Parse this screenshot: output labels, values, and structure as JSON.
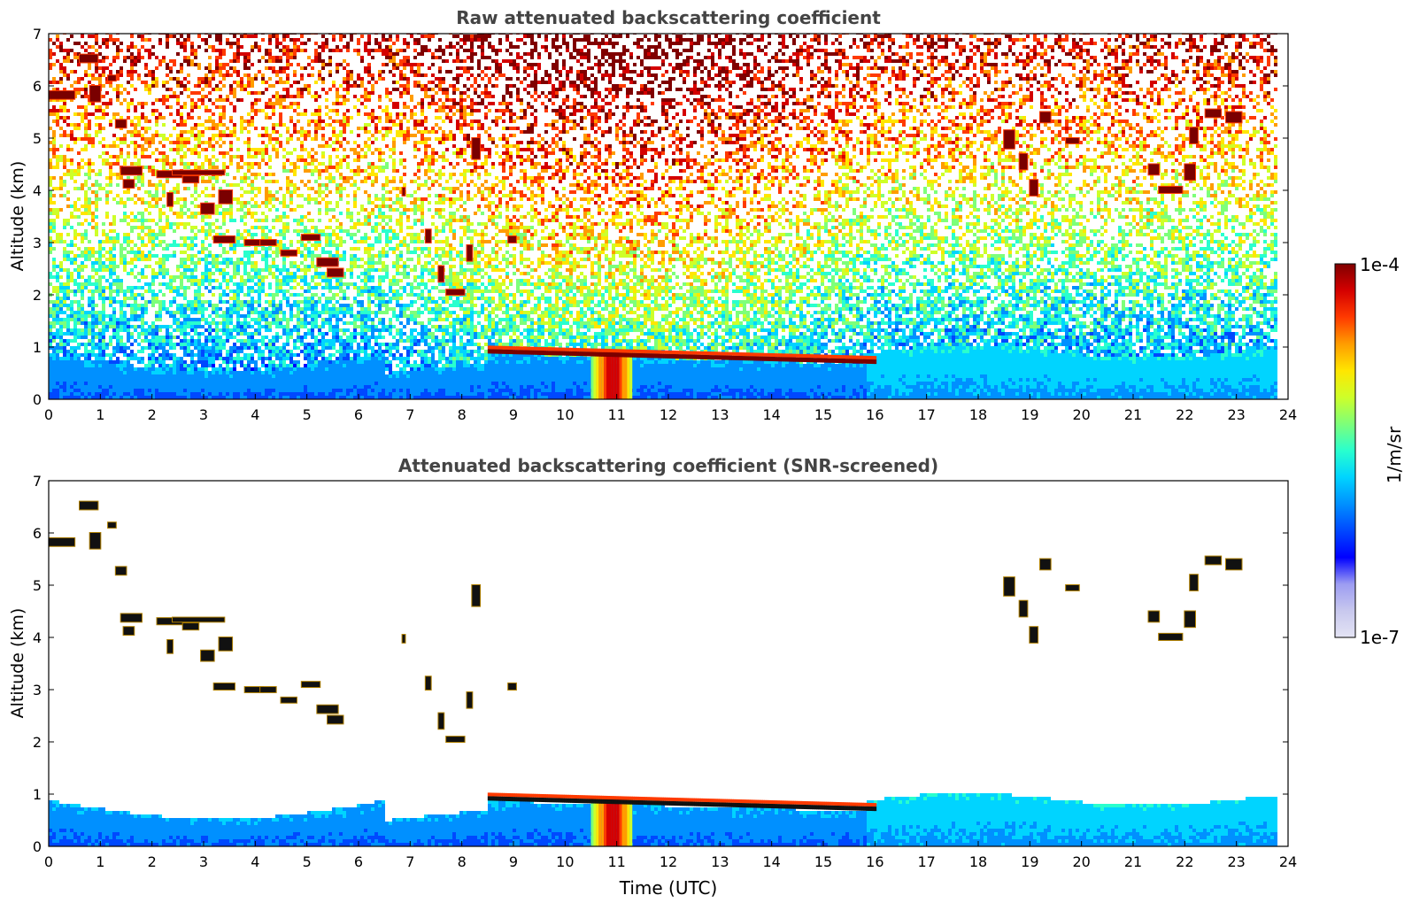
{
  "colors": {
    "title": "#444444",
    "axis": "#000000",
    "background": "#ffffff",
    "cloud_dark": "#7a0000",
    "colormap": [
      "#e4e4f4",
      "#c8c8ee",
      "#9c9cf2",
      "#0000ff",
      "#0048ff",
      "#0090ff",
      "#00d4ff",
      "#29ffce",
      "#7dff7a",
      "#ceff29",
      "#ffe600",
      "#ff9c00",
      "#ff3a00",
      "#d40000",
      "#800000"
    ]
  },
  "chart_data": [
    {
      "type": "heatmap",
      "title": "Raw attenuated backscattering coefficient",
      "xlabel": "",
      "ylabel": "Altitude (km)",
      "xlim": [
        0,
        24
      ],
      "ylim": [
        0,
        7
      ],
      "x_ticks": [
        0,
        1,
        2,
        3,
        4,
        5,
        6,
        7,
        8,
        9,
        10,
        11,
        12,
        13,
        14,
        15,
        16,
        17,
        18,
        19,
        20,
        21,
        22,
        23,
        24
      ],
      "x_tick_labels": [
        "0",
        "1",
        "2",
        "3",
        "4",
        "5",
        "6",
        "7",
        "8",
        "9",
        "10",
        "11",
        "12",
        "13",
        "14",
        "15",
        "16",
        "17",
        "18",
        "19",
        "20",
        "21",
        "22",
        "23",
        "24"
      ],
      "y_ticks": [
        0,
        1,
        2,
        3,
        4,
        5,
        6,
        7
      ],
      "y_tick_labels": [
        "0",
        "1",
        "2",
        "3",
        "4",
        "5",
        "6",
        "7"
      ],
      "data_extent_x": [
        0,
        23.8
      ],
      "features": {
        "boundary_layer_top_km": 0.6,
        "cloud_layer": {
          "start_utc": 8.5,
          "end_utc": 16.0,
          "altitude_km": [
            0.92,
            0.72
          ]
        },
        "precip_shaft": {
          "start_utc": 10.5,
          "end_utc": 11.3
        }
      }
    },
    {
      "type": "heatmap",
      "title": "Attenuated backscattering coefficient (SNR-screened)",
      "xlabel": "Time (UTC)",
      "ylabel": "Altitude (km)",
      "xlim": [
        0,
        24
      ],
      "ylim": [
        0,
        7
      ],
      "x_ticks": [
        0,
        1,
        2,
        3,
        4,
        5,
        6,
        7,
        8,
        9,
        10,
        11,
        12,
        13,
        14,
        15,
        16,
        17,
        18,
        19,
        20,
        21,
        22,
        23,
        24
      ],
      "x_tick_labels": [
        "0",
        "1",
        "2",
        "3",
        "4",
        "5",
        "6",
        "7",
        "8",
        "9",
        "10",
        "11",
        "12",
        "13",
        "14",
        "15",
        "16",
        "17",
        "18",
        "19",
        "20",
        "21",
        "22",
        "23",
        "24"
      ],
      "y_ticks": [
        0,
        1,
        2,
        3,
        4,
        5,
        6,
        7
      ],
      "y_tick_labels": [
        "0",
        "1",
        "2",
        "3",
        "4",
        "5",
        "6",
        "7"
      ],
      "data_extent_x": [
        0,
        23.8
      ]
    }
  ],
  "colorbar": {
    "label": "1/m/sr",
    "max_label": "1e-4",
    "min_label": "1e-7"
  },
  "cloud_segments": [
    {
      "t": 0.0,
      "a": 5.75,
      "w": 0.5,
      "h": 0.15
    },
    {
      "t": 0.6,
      "a": 6.45,
      "w": 0.35,
      "h": 0.15
    },
    {
      "t": 0.8,
      "a": 5.7,
      "w": 0.2,
      "h": 0.3
    },
    {
      "t": 1.15,
      "a": 6.1,
      "w": 0.15,
      "h": 0.1
    },
    {
      "t": 1.3,
      "a": 5.2,
      "w": 0.2,
      "h": 0.15
    },
    {
      "t": 1.4,
      "a": 4.3,
      "w": 0.4,
      "h": 0.15
    },
    {
      "t": 1.45,
      "a": 4.05,
      "w": 0.2,
      "h": 0.15
    },
    {
      "t": 2.1,
      "a": 4.25,
      "w": 0.8,
      "h": 0.12
    },
    {
      "t": 2.6,
      "a": 4.15,
      "w": 0.3,
      "h": 0.12
    },
    {
      "t": 2.4,
      "a": 4.3,
      "w": 1.0,
      "h": 0.08
    },
    {
      "t": 2.3,
      "a": 3.7,
      "w": 0.1,
      "h": 0.25
    },
    {
      "t": 2.95,
      "a": 3.55,
      "w": 0.25,
      "h": 0.2
    },
    {
      "t": 3.3,
      "a": 3.75,
      "w": 0.25,
      "h": 0.25
    },
    {
      "t": 3.2,
      "a": 3.0,
      "w": 0.4,
      "h": 0.12
    },
    {
      "t": 3.8,
      "a": 2.95,
      "w": 0.35,
      "h": 0.1
    },
    {
      "t": 4.1,
      "a": 2.95,
      "w": 0.3,
      "h": 0.1
    },
    {
      "t": 4.5,
      "a": 2.75,
      "w": 0.3,
      "h": 0.1
    },
    {
      "t": 4.9,
      "a": 3.05,
      "w": 0.35,
      "h": 0.1
    },
    {
      "t": 5.2,
      "a": 2.55,
      "w": 0.4,
      "h": 0.15
    },
    {
      "t": 5.4,
      "a": 2.35,
      "w": 0.3,
      "h": 0.15
    },
    {
      "t": 6.85,
      "a": 3.9,
      "w": 0.05,
      "h": 0.15
    },
    {
      "t": 7.3,
      "a": 3.0,
      "w": 0.1,
      "h": 0.25
    },
    {
      "t": 7.55,
      "a": 2.25,
      "w": 0.1,
      "h": 0.3
    },
    {
      "t": 7.7,
      "a": 2.0,
      "w": 0.35,
      "h": 0.1
    },
    {
      "t": 8.1,
      "a": 2.65,
      "w": 0.1,
      "h": 0.3
    },
    {
      "t": 8.2,
      "a": 4.6,
      "w": 0.15,
      "h": 0.4
    },
    {
      "t": 8.9,
      "a": 3.0,
      "w": 0.15,
      "h": 0.12
    },
    {
      "t": 18.5,
      "a": 4.8,
      "w": 0.2,
      "h": 0.35
    },
    {
      "t": 18.8,
      "a": 4.4,
      "w": 0.15,
      "h": 0.3
    },
    {
      "t": 19.0,
      "a": 3.9,
      "w": 0.15,
      "h": 0.3
    },
    {
      "t": 19.2,
      "a": 5.3,
      "w": 0.2,
      "h": 0.2
    },
    {
      "t": 19.7,
      "a": 4.9,
      "w": 0.25,
      "h": 0.1
    },
    {
      "t": 21.3,
      "a": 4.3,
      "w": 0.2,
      "h": 0.2
    },
    {
      "t": 21.5,
      "a": 3.95,
      "w": 0.45,
      "h": 0.12
    },
    {
      "t": 22.0,
      "a": 4.2,
      "w": 0.2,
      "h": 0.3
    },
    {
      "t": 22.1,
      "a": 4.9,
      "w": 0.15,
      "h": 0.3
    },
    {
      "t": 22.4,
      "a": 5.4,
      "w": 0.3,
      "h": 0.15
    },
    {
      "t": 22.8,
      "a": 5.3,
      "w": 0.3,
      "h": 0.2
    }
  ]
}
